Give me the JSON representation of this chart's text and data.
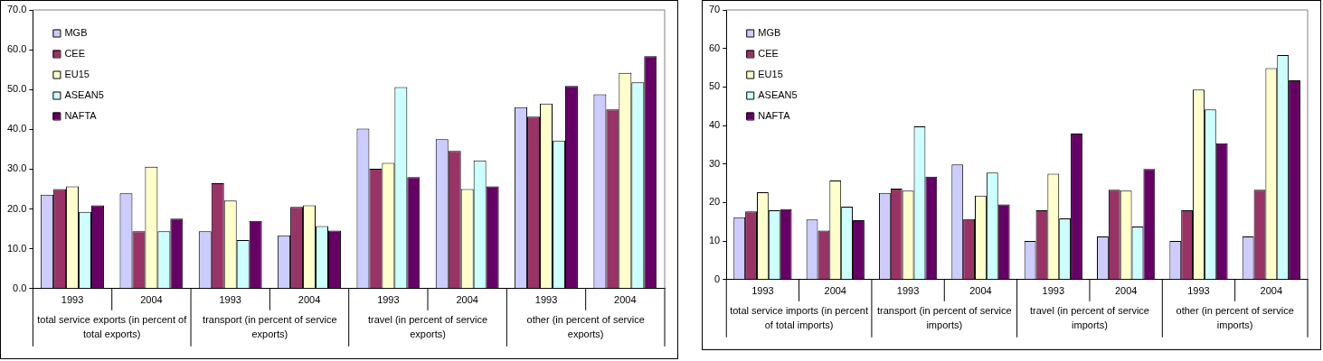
{
  "chart_data": [
    {
      "type": "bar",
      "categories": [
        "1993",
        "2004",
        "1993",
        "2004",
        "1993",
        "2004",
        "1993",
        "2004"
      ],
      "annotations": [
        "total service exports (in percent of total exports)",
        "transport (in percent of service exports)",
        "travel (in percent of service exports)",
        "other (in percent of service exports)"
      ],
      "series": [
        {
          "name": "MGB",
          "color": "#ccccff",
          "values": [
            23.6,
            23.9,
            14.4,
            13.4,
            40.2,
            37.5,
            45.6,
            48.8
          ]
        },
        {
          "name": "CEE",
          "color": "#993366",
          "values": [
            25.0,
            14.4,
            26.5,
            20.5,
            30.1,
            34.6,
            43.2,
            45.0
          ]
        },
        {
          "name": "EU15",
          "color": "#ffffcc",
          "values": [
            25.7,
            30.6,
            22.1,
            20.9,
            31.6,
            25.0,
            46.5,
            54.2
          ]
        },
        {
          "name": "ASEAN5",
          "color": "#ccffff",
          "values": [
            19.3,
            14.4,
            12.2,
            15.7,
            50.6,
            32.2,
            37.2,
            51.8
          ]
        },
        {
          "name": "NAFTA",
          "color": "#660066",
          "values": [
            20.9,
            17.6,
            17.0,
            14.6,
            28.0,
            25.7,
            50.9,
            58.4
          ]
        }
      ],
      "ylim": [
        0,
        70
      ],
      "yticks": [
        {
          "value": 0,
          "label": "0.0"
        },
        {
          "value": 10,
          "label": "10.0"
        },
        {
          "value": 20,
          "label": "20.0"
        },
        {
          "value": 30,
          "label": "30.0"
        },
        {
          "value": 40,
          "label": "40.0"
        },
        {
          "value": 50,
          "label": "50.0"
        },
        {
          "value": 60,
          "label": "60.0"
        },
        {
          "value": 70,
          "label": "70.0"
        }
      ],
      "grid": false,
      "legend": "top left"
    },
    {
      "type": "bar",
      "categories": [
        "1993",
        "2004",
        "1993",
        "2004",
        "1993",
        "2004",
        "1993",
        "2004"
      ],
      "annotations": [
        "total service imports (in percent of total imports)",
        "transport (in percent of service imports)",
        "travel (in percent of service imports)",
        "other (in percent of service imports)"
      ],
      "series": [
        {
          "name": "MGB",
          "color": "#ccccff",
          "values": [
            16.2,
            15.6,
            22.5,
            29.9,
            10.0,
            11.2,
            10.0,
            11.2
          ]
        },
        {
          "name": "CEE",
          "color": "#993366",
          "values": [
            17.7,
            12.7,
            23.6,
            15.7,
            18.0,
            23.3,
            18.0,
            23.3
          ]
        },
        {
          "name": "EU15",
          "color": "#ffffcc",
          "values": [
            22.7,
            25.7,
            23.1,
            21.8,
            27.5,
            23.1,
            49.3,
            54.9
          ]
        },
        {
          "name": "ASEAN5",
          "color": "#ccffff",
          "values": [
            18.0,
            18.9,
            39.8,
            27.8,
            15.9,
            13.8,
            44.2,
            58.3
          ]
        },
        {
          "name": "NAFTA",
          "color": "#660066",
          "values": [
            18.3,
            15.4,
            26.7,
            19.5,
            37.9,
            28.7,
            35.4,
            51.7
          ]
        }
      ],
      "ylim": [
        0,
        70
      ],
      "yticks": [
        0,
        10,
        20,
        30,
        40,
        50,
        60,
        70
      ],
      "grid": false,
      "legend": "top left"
    }
  ]
}
